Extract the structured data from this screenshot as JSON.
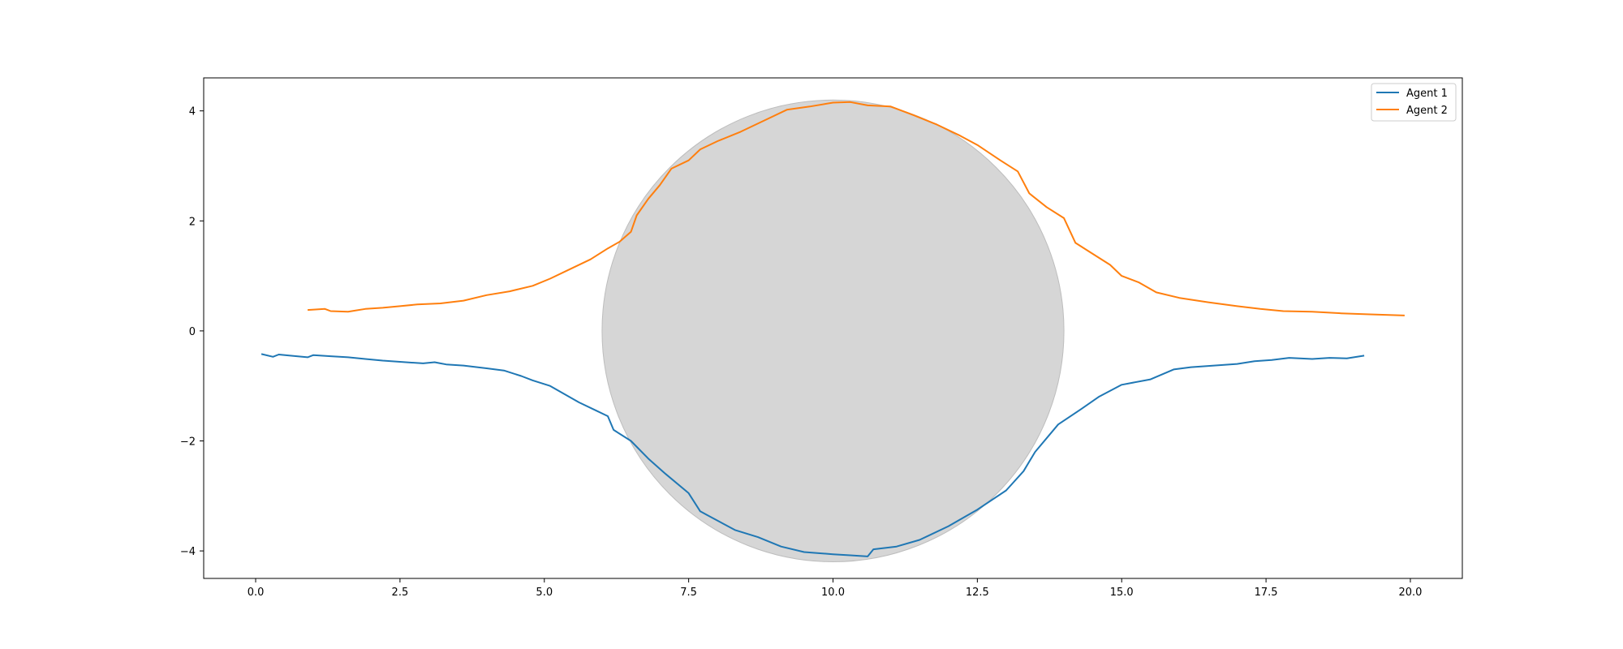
{
  "chart_data": {
    "type": "line",
    "title": "",
    "xlabel": "",
    "ylabel": "",
    "xlim": [
      -0.9,
      20.9
    ],
    "ylim": [
      -4.5,
      4.6
    ],
    "xticks": [
      0.0,
      2.5,
      5.0,
      7.5,
      10.0,
      12.5,
      15.0,
      17.5,
      20.0
    ],
    "xtick_labels": [
      "0.0",
      "2.5",
      "5.0",
      "7.5",
      "10.0",
      "12.5",
      "15.0",
      "17.5",
      "20.0"
    ],
    "yticks": [
      -4,
      -2,
      0,
      2,
      4
    ],
    "ytick_labels": [
      "−4",
      "−2",
      "0",
      "2",
      "4"
    ],
    "grid": false,
    "legend_position": "top-right",
    "obstacle": {
      "shape": "circle",
      "center": [
        10.0,
        0.0
      ],
      "radius": 4.0,
      "color": "#d6d6d6"
    },
    "series": [
      {
        "name": "Agent 1",
        "color": "#1f77b4",
        "x": [
          0.1,
          0.3,
          0.4,
          0.6,
          0.9,
          1.0,
          1.3,
          1.6,
          1.9,
          2.2,
          2.6,
          2.9,
          3.1,
          3.2,
          3.3,
          3.6,
          4.0,
          4.3,
          4.6,
          4.8,
          5.1,
          5.4,
          5.6,
          5.9,
          6.1,
          6.2,
          6.5,
          6.8,
          7.1,
          7.5,
          7.7,
          8.0,
          8.3,
          8.7,
          9.1,
          9.5,
          10.0,
          10.3,
          10.6,
          10.7,
          11.1,
          11.5,
          12.0,
          12.5,
          13.0,
          13.3,
          13.5,
          13.9,
          14.3,
          14.6,
          15.0,
          15.5,
          15.9,
          16.2,
          16.6,
          17.0,
          17.3,
          17.6,
          17.9,
          18.3,
          18.6,
          18.9,
          19.2
        ],
        "y": [
          -0.42,
          -0.47,
          -0.43,
          -0.45,
          -0.48,
          -0.44,
          -0.46,
          -0.48,
          -0.51,
          -0.54,
          -0.57,
          -0.59,
          -0.57,
          -0.59,
          -0.61,
          -0.63,
          -0.68,
          -0.72,
          -0.82,
          -0.9,
          -1.0,
          -1.18,
          -1.3,
          -1.45,
          -1.55,
          -1.8,
          -2.0,
          -2.32,
          -2.6,
          -2.95,
          -3.28,
          -3.45,
          -3.62,
          -3.75,
          -3.92,
          -4.02,
          -4.06,
          -4.08,
          -4.1,
          -3.97,
          -3.92,
          -3.8,
          -3.55,
          -3.25,
          -2.9,
          -2.55,
          -2.2,
          -1.7,
          -1.42,
          -1.2,
          -0.98,
          -0.88,
          -0.7,
          -0.66,
          -0.63,
          -0.6,
          -0.55,
          -0.53,
          -0.49,
          -0.51,
          -0.49,
          -0.5,
          -0.45
        ]
      },
      {
        "name": "Agent 2",
        "color": "#ff7f0e",
        "x": [
          0.9,
          1.2,
          1.3,
          1.6,
          1.9,
          2.2,
          2.5,
          2.8,
          3.2,
          3.6,
          4.0,
          4.4,
          4.8,
          5.1,
          5.4,
          5.8,
          6.1,
          6.3,
          6.5,
          6.6,
          6.8,
          7.0,
          7.2,
          7.5,
          7.7,
          8.0,
          8.4,
          8.8,
          9.2,
          9.6,
          10.0,
          10.3,
          10.6,
          11.0,
          11.4,
          11.8,
          12.2,
          12.5,
          12.9,
          13.2,
          13.4,
          13.7,
          14.0,
          14.2,
          14.5,
          14.8,
          15.0,
          15.3,
          15.6,
          16.0,
          16.5,
          17.0,
          17.4,
          17.8,
          18.3,
          18.8,
          19.3,
          19.9
        ],
        "y": [
          0.38,
          0.4,
          0.36,
          0.35,
          0.4,
          0.42,
          0.45,
          0.48,
          0.5,
          0.55,
          0.65,
          0.72,
          0.82,
          0.95,
          1.1,
          1.3,
          1.5,
          1.62,
          1.8,
          2.1,
          2.4,
          2.65,
          2.95,
          3.1,
          3.3,
          3.45,
          3.62,
          3.82,
          4.02,
          4.08,
          4.15,
          4.16,
          4.1,
          4.08,
          3.92,
          3.75,
          3.55,
          3.38,
          3.1,
          2.9,
          2.5,
          2.25,
          2.05,
          1.6,
          1.4,
          1.2,
          1.0,
          0.88,
          0.7,
          0.6,
          0.52,
          0.45,
          0.4,
          0.36,
          0.35,
          0.32,
          0.3,
          0.28
        ]
      }
    ]
  }
}
